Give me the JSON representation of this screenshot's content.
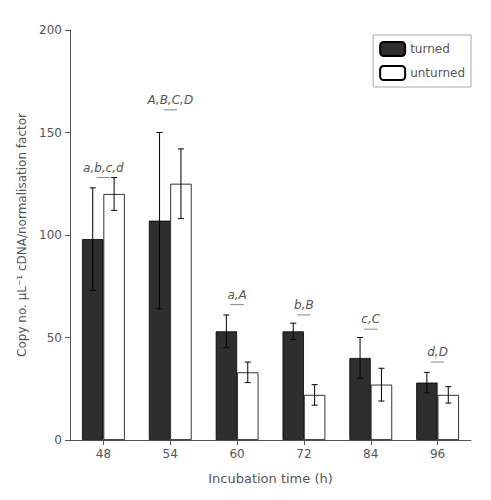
{
  "chart_data": {
    "type": "bar",
    "categories": [
      "48",
      "54",
      "60",
      "72",
      "84",
      "96"
    ],
    "series": [
      {
        "name": "turned",
        "color": "#2e2e2e",
        "values": [
          98,
          107,
          53,
          53,
          40,
          28
        ],
        "errors": [
          25,
          43,
          8,
          4,
          10,
          5
        ]
      },
      {
        "name": "unturned",
        "color": "#ffffff",
        "values": [
          120,
          125,
          33,
          22,
          27,
          22
        ],
        "errors": [
          8,
          17,
          5,
          5,
          8,
          4
        ]
      }
    ],
    "xlabel": "Incubation time (h)",
    "ylabel": "Copy no. μL⁻¹ cDNA/normalisation factor",
    "ylim": [
      0,
      200
    ],
    "yticks": [
      0,
      50,
      100,
      150,
      200
    ],
    "annotations": [
      {
        "text": "a,b,c,d",
        "x": "48",
        "y": 130
      },
      {
        "text": "A,B,C,D",
        "x": "54",
        "y": 163
      },
      {
        "text": "a,A",
        "x": "60",
        "y": 68
      },
      {
        "text": "b,B",
        "x": "72",
        "y": 63
      },
      {
        "text": "c,C",
        "x": "84",
        "y": 56
      },
      {
        "text": "d,D",
        "x": "96",
        "y": 40
      }
    ],
    "legend": "upper right",
    "grid": false
  }
}
